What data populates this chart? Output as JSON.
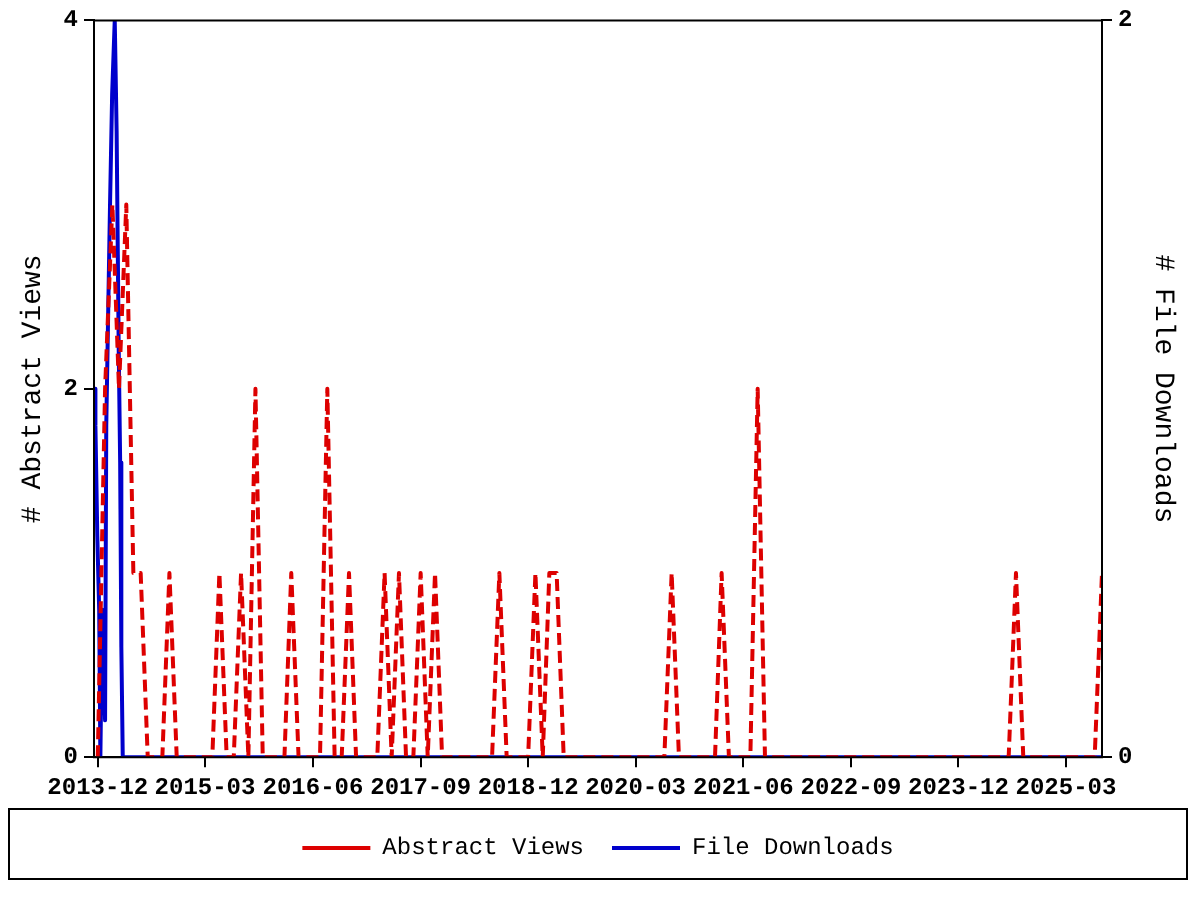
{
  "chart_data": {
    "type": "line",
    "ylabel": "# Abstract Views",
    "y2label": "# File Downloads",
    "xlim": [
      "2013-11-15",
      "2025-08"
    ],
    "xticks": [
      "2013-12",
      "2015-03",
      "2016-06",
      "2017-09",
      "2018-12",
      "2020-03",
      "2021-06",
      "2022-09",
      "2023-12",
      "2025-03"
    ],
    "ylim": [
      0,
      4
    ],
    "yticks": [
      0,
      2,
      4
    ],
    "y2lim": [
      0,
      2
    ],
    "y2ticks": [
      0,
      2
    ],
    "grid": false,
    "legend": "bottom",
    "marker": "none",
    "series": [
      {
        "name": "Abstract Views",
        "color": "#dd0000",
        "line_style": "dashed",
        "x": [
          "2013-12",
          "2014-01",
          "2014-02",
          "2014-03",
          "2014-04",
          "2014-05",
          "2014-06",
          "2014-07",
          "2014-09",
          "2014-10",
          "2014-11",
          "2015-04",
          "2015-05",
          "2015-06",
          "2015-07",
          "2015-08",
          "2015-09",
          "2015-10",
          "2015-11",
          "2016-02",
          "2016-03",
          "2016-04",
          "2016-07",
          "2016-08",
          "2016-09",
          "2016-10",
          "2016-11",
          "2016-12",
          "2017-03",
          "2017-04",
          "2017-05",
          "2017-06",
          "2017-07",
          "2017-08",
          "2017-09",
          "2017-10",
          "2017-11",
          "2017-12",
          "2018-07",
          "2018-08",
          "2018-09",
          "2018-12",
          "2019-01",
          "2019-02",
          "2019-03",
          "2019-04",
          "2019-05",
          "2020-07",
          "2020-08",
          "2020-09",
          "2021-02",
          "2021-03",
          "2021-04",
          "2021-07",
          "2021-08",
          "2021-09",
          "2024-07",
          "2024-08",
          "2024-09",
          "2025-07",
          "2025-08"
        ],
        "values": [
          0,
          2,
          3,
          2,
          3,
          1,
          1,
          0,
          0,
          1,
          0,
          0,
          1,
          0,
          0,
          1,
          0,
          2,
          0,
          0,
          1,
          0,
          0,
          2,
          0,
          0,
          1,
          0,
          0,
          1,
          0,
          1,
          0,
          0,
          1,
          0,
          1,
          0,
          0,
          1,
          0,
          0,
          1,
          0,
          1,
          1,
          0,
          0,
          1,
          0,
          0,
          1,
          0,
          0,
          2,
          0,
          0,
          1,
          0,
          0,
          1
        ]
      },
      {
        "name": "File Downloads",
        "color": "#0000cc",
        "line_style": "solid",
        "axis": "y2",
        "x": [
          "2013-11-15",
          "2013-11-21",
          "2013-11-29",
          "2013-12-07",
          "2013-12-12",
          "2013-12-20",
          "2014-01-01",
          "2014-01-06",
          "2014-01-14",
          "2014-01-22",
          "2014-01-31",
          "2014-02-11",
          "2014-02-19",
          "2014-02-28",
          "2014-03-06",
          "2014-03-11",
          "2014-03-17",
          "2025-08"
        ],
        "values": [
          1.0,
          0.9,
          0.6,
          0.4,
          0,
          0.4,
          0.1,
          0.9,
          1.2,
          1.5,
          1.8,
          2.0,
          1.7,
          1.1,
          0.8,
          0.3,
          0,
          0
        ]
      }
    ]
  }
}
